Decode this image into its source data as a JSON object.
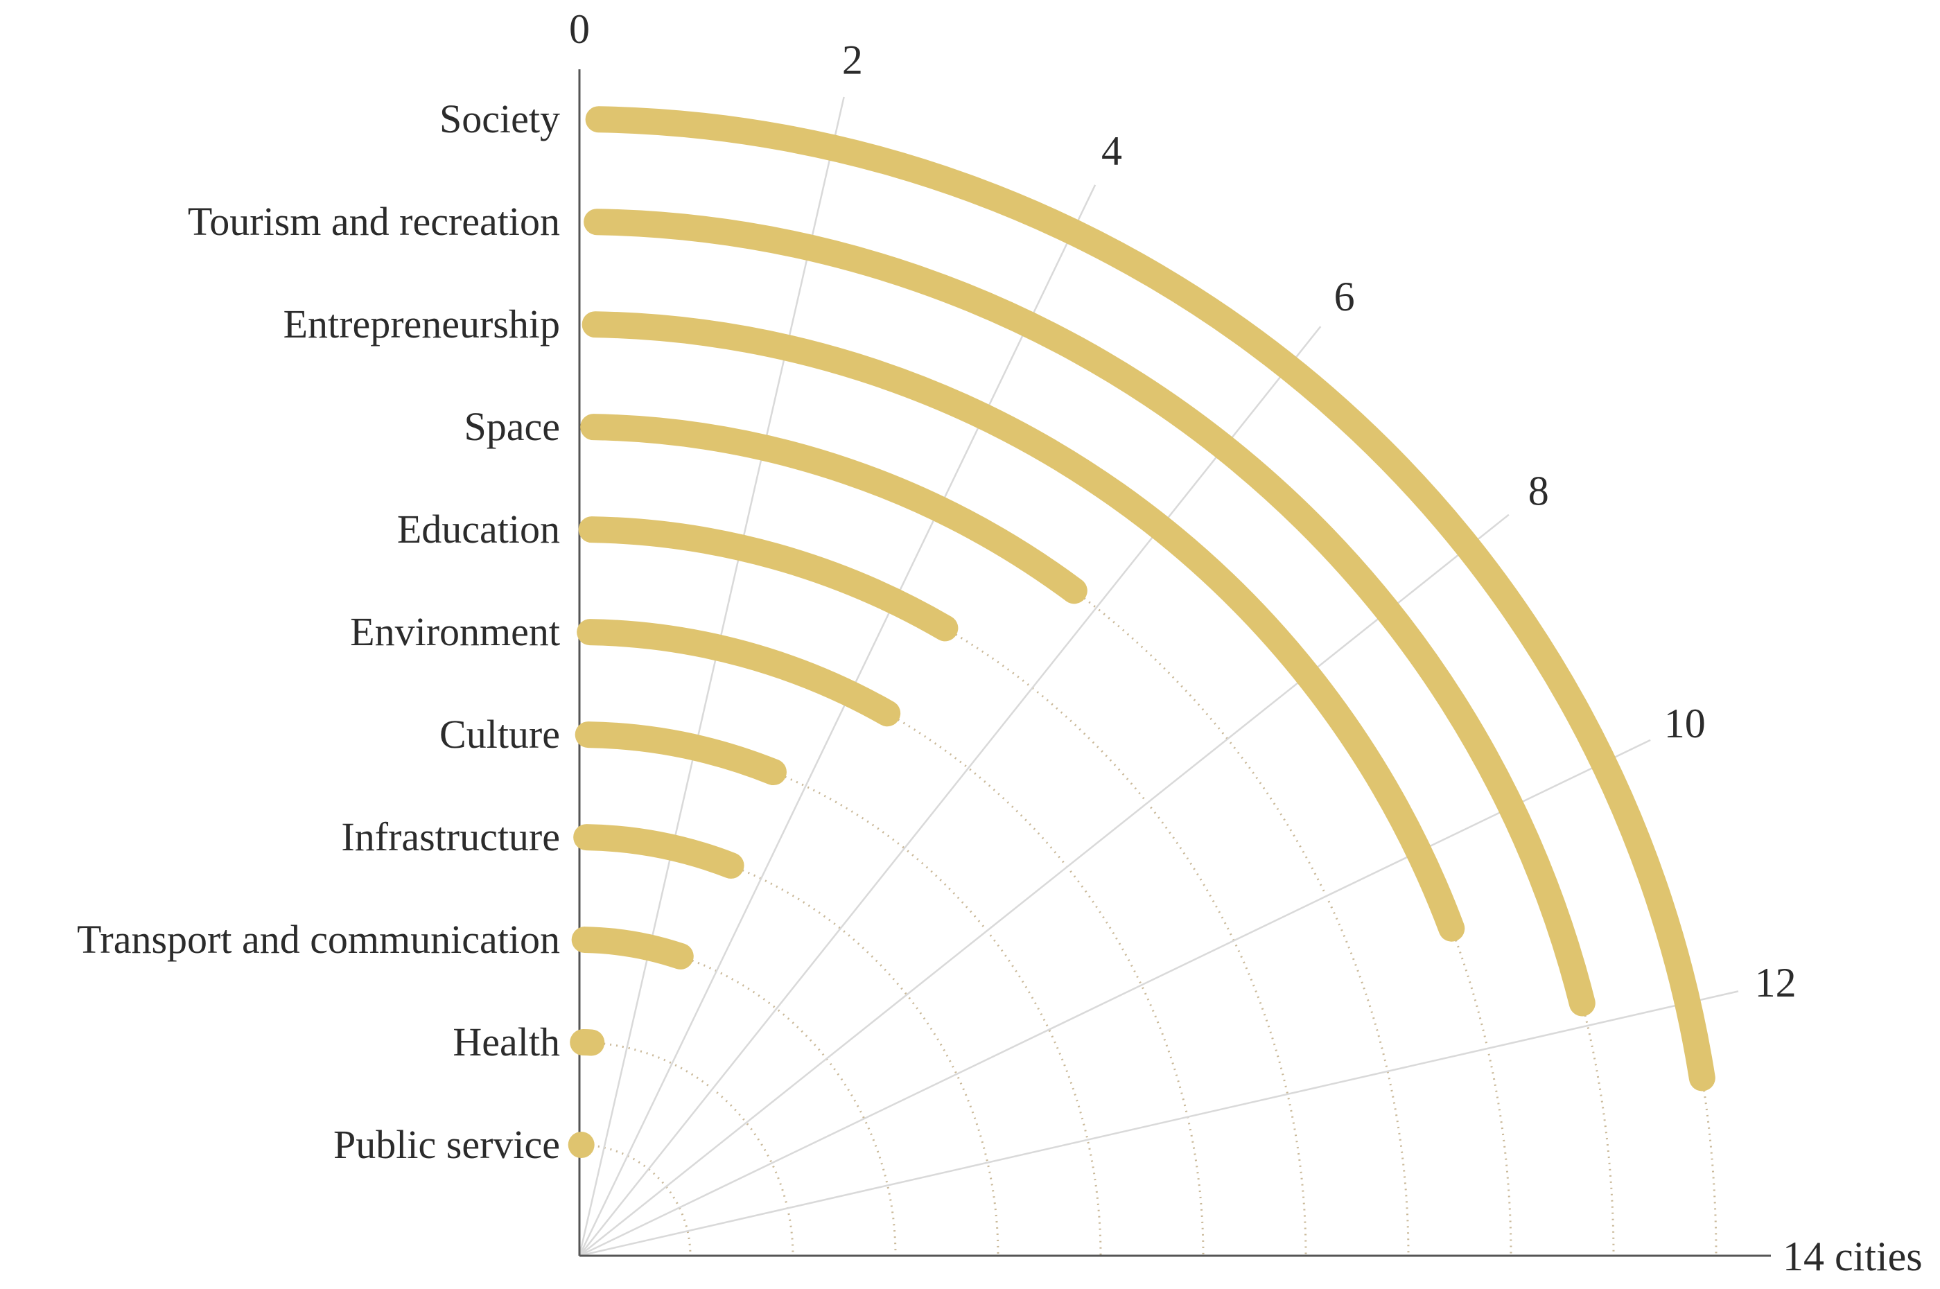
{
  "chart_data": {
    "type": "radial-bar",
    "title": "",
    "unit_label": "14 cities",
    "axis_range": [
      0,
      14
    ],
    "ticks": [
      0,
      2,
      4,
      6,
      8,
      10,
      12
    ],
    "colors": {
      "bar": "#dfc46f",
      "spoke": "#d9d9d9",
      "guide": "#c9b898",
      "axis": "#555555",
      "text": "#2b2b2b"
    },
    "categories": [
      "Society",
      "Tourism and recreation",
      "Entrepreneurship",
      "Space",
      "Education",
      "Environment",
      "Culture",
      "Infrastructure",
      "Transport and communication",
      "Health",
      "Public service"
    ],
    "values": [
      12.6,
      11.8,
      10.8,
      5.7,
      4.7,
      4.6,
      3.4,
      3.3,
      2.9,
      0.5,
      0
    ]
  }
}
